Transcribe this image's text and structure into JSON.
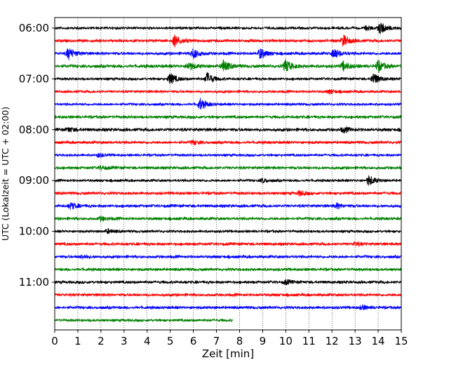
{
  "chart_data": {
    "type": "line",
    "title": "",
    "xlabel": "Zeit  [min]",
    "ylabel": "UTC (Lokalzeit = UTC + 02:00)",
    "xlim": [
      0,
      15
    ],
    "x_ticks": [
      "0",
      "1",
      "2",
      "3",
      "4",
      "5",
      "6",
      "7",
      "8",
      "9",
      "10",
      "11",
      "12",
      "13",
      "14",
      "15"
    ],
    "grid": "vertical-dotted",
    "y_ticks": [
      {
        "label": "06:00",
        "row": 0
      },
      {
        "label": "07:00",
        "row": 4
      },
      {
        "label": "08:00",
        "row": 8
      },
      {
        "label": "09:00",
        "row": 12
      },
      {
        "label": "10:00",
        "row": 16
      },
      {
        "label": "11:00",
        "row": 20
      }
    ],
    "series_colors": [
      "#000000",
      "#ff0000",
      "#0000ff",
      "#008000"
    ],
    "traces": [
      {
        "start": "06:00",
        "end_min": 15,
        "noise": 0.18,
        "events": [
          [
            14.1,
            0.95
          ],
          [
            13.5,
            0.3
          ]
        ]
      },
      {
        "start": "06:15",
        "end_min": 15,
        "noise": 0.2,
        "events": [
          [
            5.2,
            0.9
          ],
          [
            12.5,
            0.85
          ]
        ]
      },
      {
        "start": "06:30",
        "end_min": 15,
        "noise": 0.2,
        "events": [
          [
            0.6,
            0.85
          ],
          [
            6.0,
            0.75
          ],
          [
            8.9,
            0.8
          ],
          [
            12.1,
            0.75
          ]
        ]
      },
      {
        "start": "06:45",
        "end_min": 15,
        "noise": 0.22,
        "events": [
          [
            5.8,
            0.6
          ],
          [
            7.3,
            0.9
          ],
          [
            10.0,
            0.95
          ],
          [
            12.5,
            0.65
          ],
          [
            14.0,
            0.85
          ]
        ]
      },
      {
        "start": "07:00",
        "end_min": 15,
        "noise": 0.18,
        "events": [
          [
            5.0,
            0.85
          ],
          [
            6.6,
            0.95
          ],
          [
            13.8,
            0.9
          ]
        ]
      },
      {
        "start": "07:15",
        "end_min": 15,
        "noise": 0.18,
        "events": [
          [
            11.9,
            0.3
          ]
        ]
      },
      {
        "start": "07:30",
        "end_min": 15,
        "noise": 0.18,
        "events": [
          [
            6.3,
            0.85
          ]
        ]
      },
      {
        "start": "07:45",
        "end_min": 15,
        "noise": 0.2,
        "events": []
      },
      {
        "start": "08:00",
        "end_min": 15,
        "noise": 0.22,
        "events": [
          [
            0.6,
            0.3
          ],
          [
            12.5,
            0.35
          ]
        ]
      },
      {
        "start": "08:15",
        "end_min": 15,
        "noise": 0.2,
        "events": [
          [
            6.0,
            0.3
          ]
        ]
      },
      {
        "start": "08:30",
        "end_min": 15,
        "noise": 0.18,
        "events": [
          [
            1.9,
            0.25
          ]
        ]
      },
      {
        "start": "08:45",
        "end_min": 15,
        "noise": 0.2,
        "events": [
          [
            2.0,
            0.25
          ]
        ]
      },
      {
        "start": "09:00",
        "end_min": 15,
        "noise": 0.18,
        "events": [
          [
            13.6,
            0.75
          ],
          [
            9.0,
            0.3
          ]
        ]
      },
      {
        "start": "09:15",
        "end_min": 15,
        "noise": 0.2,
        "events": [
          [
            10.6,
            0.35
          ]
        ]
      },
      {
        "start": "09:30",
        "end_min": 15,
        "noise": 0.2,
        "events": [
          [
            0.7,
            0.5
          ],
          [
            12.2,
            0.35
          ]
        ]
      },
      {
        "start": "09:45",
        "end_min": 15,
        "noise": 0.2,
        "events": [
          [
            2.0,
            0.3
          ]
        ]
      },
      {
        "start": "10:00",
        "end_min": 15,
        "noise": 0.18,
        "events": [
          [
            2.3,
            0.3
          ]
        ]
      },
      {
        "start": "10:15",
        "end_min": 15,
        "noise": 0.2,
        "events": [
          [
            13.0,
            0.25
          ]
        ]
      },
      {
        "start": "10:30",
        "end_min": 15,
        "noise": 0.2,
        "events": [
          [
            1.2,
            0.25
          ]
        ]
      },
      {
        "start": "10:45",
        "end_min": 15,
        "noise": 0.2,
        "events": []
      },
      {
        "start": "11:00",
        "end_min": 15,
        "noise": 0.2,
        "events": [
          [
            10.0,
            0.3
          ]
        ]
      },
      {
        "start": "11:15",
        "end_min": 15,
        "noise": 0.2,
        "events": []
      },
      {
        "start": "11:30",
        "end_min": 15,
        "noise": 0.2,
        "events": [
          [
            13.3,
            0.3
          ]
        ]
      },
      {
        "start": "11:45",
        "end_min": 7.7,
        "noise": 0.18,
        "events": []
      }
    ]
  }
}
